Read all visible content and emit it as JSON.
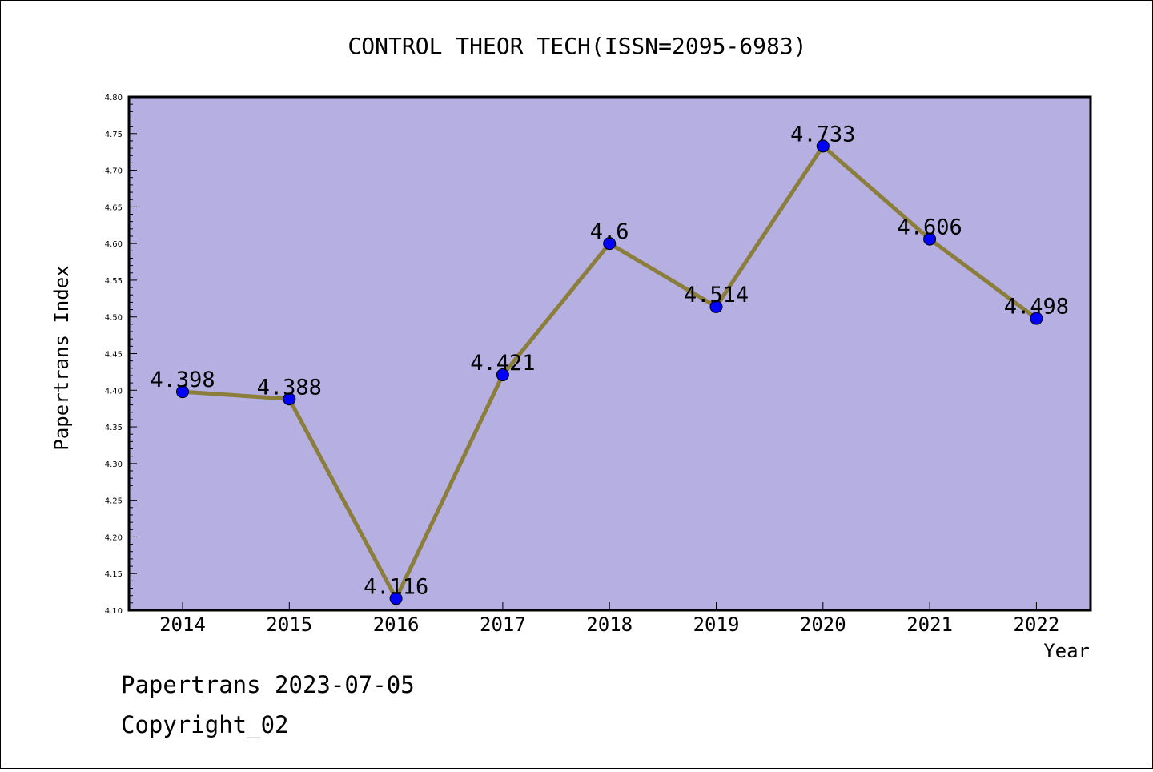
{
  "chart_data": {
    "type": "line",
    "title": "CONTROL THEOR TECH(ISSN=2095-6983)",
    "xlabel": "Year",
    "ylabel": "Papertrans Index",
    "categories": [
      "2014",
      "2015",
      "2016",
      "2017",
      "2018",
      "2019",
      "2020",
      "2021",
      "2022"
    ],
    "values": [
      4.398,
      4.388,
      4.116,
      4.421,
      4.6,
      4.514,
      4.733,
      4.606,
      4.498
    ],
    "data_labels": [
      "4.398",
      "4.388",
      "4.116",
      "4.421",
      "4.6",
      "4.514",
      "4.733",
      "4.606",
      "4.498"
    ],
    "ylim": [
      4.1,
      4.8
    ],
    "yticks": [
      "4.10",
      "4.15",
      "4.20",
      "4.25",
      "4.30",
      "4.35",
      "4.40",
      "4.45",
      "4.50",
      "4.55",
      "4.60",
      "4.65",
      "4.70",
      "4.75",
      "4.80"
    ],
    "grid": false,
    "legend": "none",
    "colors": {
      "plot_background": "#b5afe2",
      "line": "#8b7d3a",
      "marker": "#0000ff"
    }
  },
  "footer": {
    "line1": "Papertrans 2023-07-05",
    "line2": "Copyright_02"
  }
}
